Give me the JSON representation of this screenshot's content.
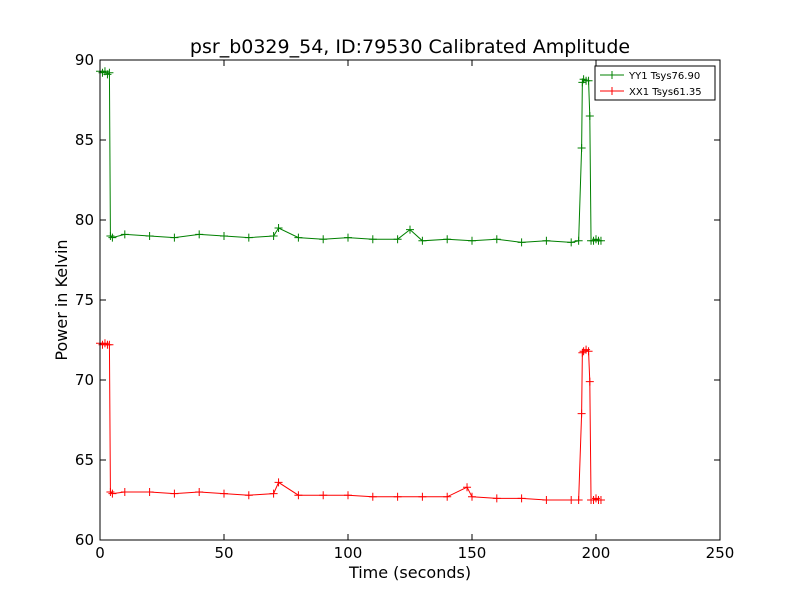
{
  "chart_data": {
    "type": "line",
    "title": "psr_b0329_54, ID:79530 Calibrated Amplitude",
    "xlabel": "Time (seconds)",
    "ylabel": "Power in Kelvin",
    "xlim": [
      0,
      250
    ],
    "ylim": [
      60,
      90
    ],
    "xticks": [
      "0",
      "50",
      "100",
      "150",
      "200",
      "250"
    ],
    "yticks": [
      "60",
      "65",
      "70",
      "75",
      "80",
      "85",
      "90"
    ],
    "grid": false,
    "legend_position": "top-right",
    "marker": "+",
    "series": [
      {
        "name": "YY1 Tsys76.90",
        "color": "#008000",
        "x": [
          0,
          1,
          2,
          3,
          3.8,
          4.2,
          5,
          10,
          20,
          30,
          40,
          50,
          60,
          70,
          72,
          80,
          90,
          100,
          110,
          120,
          125,
          130,
          140,
          150,
          160,
          170,
          180,
          190,
          193,
          194.2,
          194.5,
          195,
          196,
          197,
          197.5,
          198,
          199,
          200,
          201,
          202
        ],
        "y": [
          89.3,
          89.2,
          89.3,
          89.1,
          89.2,
          79.0,
          78.9,
          79.1,
          79.0,
          78.9,
          79.1,
          79.0,
          78.9,
          79.0,
          79.5,
          78.9,
          78.8,
          78.9,
          78.8,
          78.8,
          79.4,
          78.7,
          78.8,
          78.7,
          78.8,
          78.6,
          78.7,
          78.6,
          78.7,
          84.5,
          88.6,
          88.8,
          88.7,
          88.7,
          86.5,
          78.7,
          78.7,
          78.8,
          78.7,
          78.7
        ]
      },
      {
        "name": "XX1 Tsys61.35",
        "color": "#ff0000",
        "x": [
          0,
          1,
          2,
          3,
          3.8,
          4.2,
          5,
          10,
          20,
          30,
          40,
          50,
          60,
          70,
          72,
          80,
          90,
          100,
          110,
          120,
          130,
          140,
          148,
          150,
          160,
          170,
          180,
          190,
          193,
          194.2,
          194.5,
          195,
          196,
          197,
          197.5,
          198,
          199,
          200,
          201,
          202
        ],
        "y": [
          72.3,
          72.2,
          72.3,
          72.2,
          72.2,
          63.0,
          62.9,
          63.0,
          63.0,
          62.9,
          63.0,
          62.9,
          62.8,
          62.9,
          63.6,
          62.8,
          62.8,
          62.8,
          62.7,
          62.7,
          62.7,
          62.7,
          63.3,
          62.7,
          62.6,
          62.6,
          62.5,
          62.5,
          62.5,
          67.9,
          71.7,
          71.8,
          71.9,
          71.8,
          69.9,
          62.5,
          62.5,
          62.6,
          62.5,
          62.5
        ]
      }
    ]
  }
}
